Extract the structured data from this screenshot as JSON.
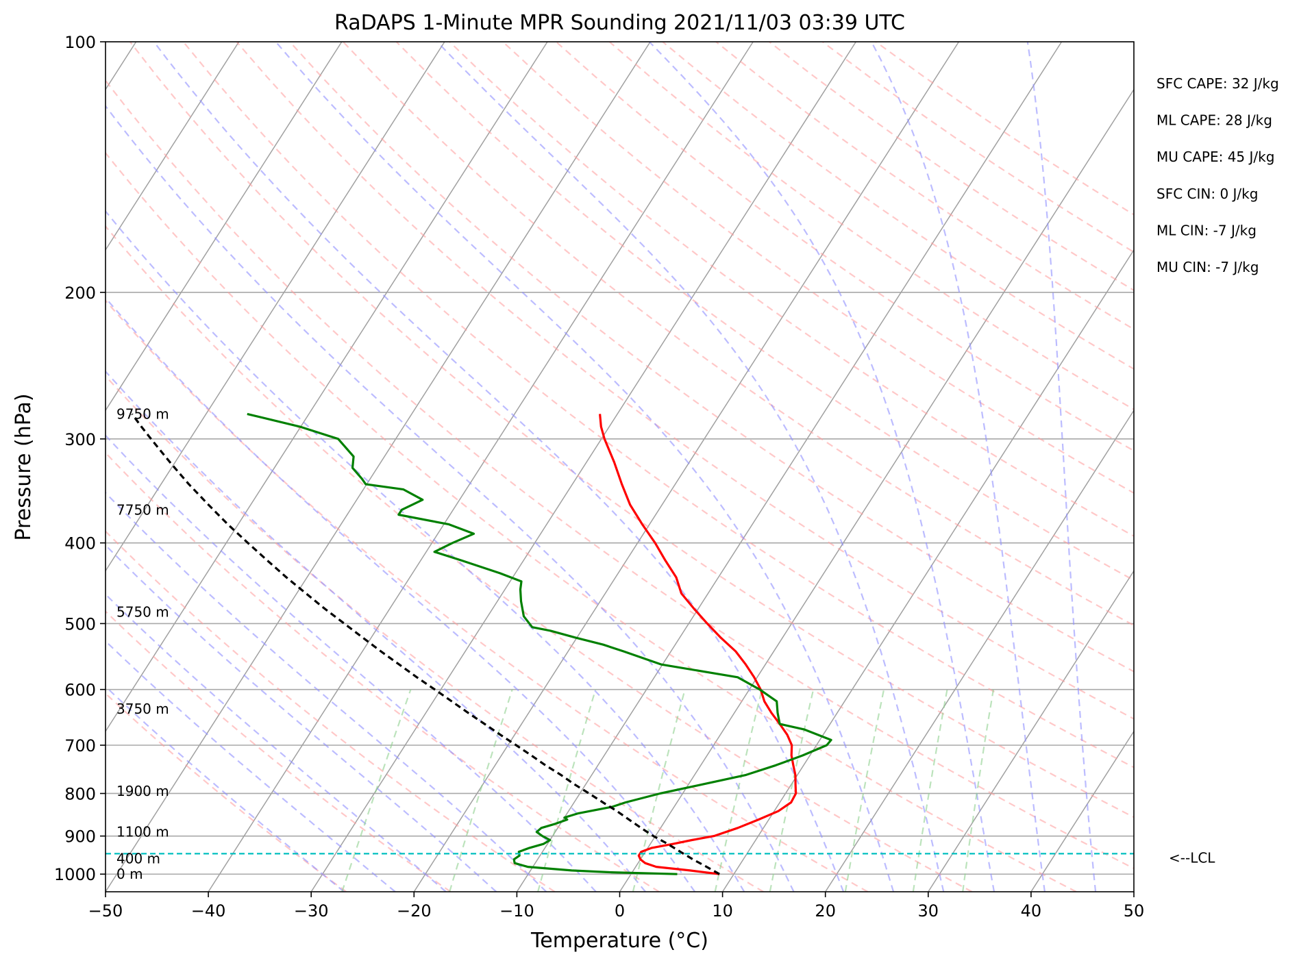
{
  "chart_data": {
    "type": "line",
    "subtype": "skew-T log-p sounding",
    "title": "RaDAPS 1-Minute MPR Sounding 2021/11/03 03:39 UTC",
    "xlabel": "Temperature (°C)",
    "ylabel": "Pressure (hPa)",
    "xlim": [
      -50,
      50
    ],
    "ylim": [
      1050,
      100
    ],
    "y_scale": "log",
    "grid": true,
    "x_ticks": [
      -50,
      -40,
      -30,
      -20,
      -10,
      0,
      10,
      20,
      30,
      40,
      50
    ],
    "x_tick_labels": [
      "−50",
      "−40",
      "−30",
      "−20",
      "−10",
      "0",
      "10",
      "20",
      "30",
      "40",
      "50"
    ],
    "y_ticks": [
      1000,
      900,
      800,
      700,
      600,
      500,
      400,
      300,
      200,
      100
    ],
    "y_tick_labels": [
      "1000",
      "900",
      "800",
      "700",
      "600",
      "500",
      "400",
      "300",
      "200",
      "100"
    ],
    "series": [
      {
        "key": "temperature",
        "color": "#ff0000",
        "points": [
          [
            1000,
            8.6
          ],
          [
            990,
            5.5
          ],
          [
            980,
            2.0
          ],
          [
            970,
            0.7
          ],
          [
            960,
            0.0
          ],
          [
            950,
            -0.4
          ],
          [
            940,
            -0.4
          ],
          [
            930,
            0.4
          ],
          [
            920,
            2.2
          ],
          [
            910,
            3.8
          ],
          [
            900,
            5.7
          ],
          [
            880,
            7.5
          ],
          [
            860,
            9.0
          ],
          [
            840,
            10.4
          ],
          [
            820,
            11.1
          ],
          [
            800,
            11.0
          ],
          [
            780,
            10.4
          ],
          [
            760,
            9.8
          ],
          [
            740,
            9.0
          ],
          [
            720,
            8.2
          ],
          [
            700,
            7.6
          ],
          [
            680,
            6.5
          ],
          [
            660,
            5.1
          ],
          [
            640,
            3.6
          ],
          [
            620,
            2.2
          ],
          [
            600,
            1.1
          ],
          [
            580,
            -0.3
          ],
          [
            560,
            -1.9
          ],
          [
            540,
            -3.7
          ],
          [
            520,
            -6.0
          ],
          [
            500,
            -8.2
          ],
          [
            480,
            -10.4
          ],
          [
            460,
            -12.6
          ],
          [
            440,
            -14.1
          ],
          [
            420,
            -16.2
          ],
          [
            400,
            -18.3
          ],
          [
            380,
            -20.7
          ],
          [
            360,
            -23.1
          ],
          [
            340,
            -25.2
          ],
          [
            320,
            -27.3
          ],
          [
            300,
            -29.7
          ],
          [
            290,
            -30.8
          ],
          [
            280,
            -31.7
          ]
        ]
      },
      {
        "key": "dewpoint",
        "color": "#008000",
        "points": [
          [
            1000,
            4.5
          ],
          [
            995,
            -2.0
          ],
          [
            990,
            -6.0
          ],
          [
            980,
            -10.5
          ],
          [
            970,
            -12.0
          ],
          [
            960,
            -12.3
          ],
          [
            950,
            -12.0
          ],
          [
            940,
            -12.3
          ],
          [
            930,
            -11.5
          ],
          [
            920,
            -10.4
          ],
          [
            910,
            -10.0
          ],
          [
            900,
            -11.0
          ],
          [
            890,
            -11.8
          ],
          [
            880,
            -11.6
          ],
          [
            870,
            -10.5
          ],
          [
            860,
            -9.6
          ],
          [
            855,
            -10.0
          ],
          [
            845,
            -8.9
          ],
          [
            830,
            -6.0
          ],
          [
            820,
            -5.0
          ],
          [
            800,
            -2.2
          ],
          [
            780,
            1.4
          ],
          [
            760,
            5.0
          ],
          [
            740,
            7.3
          ],
          [
            720,
            9.3
          ],
          [
            700,
            11.0
          ],
          [
            690,
            11.1
          ],
          [
            670,
            7.8
          ],
          [
            660,
            5.1
          ],
          [
            640,
            4.2
          ],
          [
            620,
            3.4
          ],
          [
            600,
            1.0
          ],
          [
            580,
            -1.9
          ],
          [
            560,
            -10.1
          ],
          [
            540,
            -14.6
          ],
          [
            530,
            -17.0
          ],
          [
            520,
            -20.1
          ],
          [
            510,
            -23.0
          ],
          [
            505,
            -25.0
          ],
          [
            490,
            -26.5
          ],
          [
            470,
            -27.7
          ],
          [
            455,
            -28.5
          ],
          [
            445,
            -28.9
          ],
          [
            435,
            -31.5
          ],
          [
            420,
            -36.0
          ],
          [
            410,
            -39.2
          ],
          [
            400,
            -38.0
          ],
          [
            390,
            -36.5
          ],
          [
            380,
            -39.5
          ],
          [
            370,
            -45.0
          ],
          [
            365,
            -45.0
          ],
          [
            355,
            -43.6
          ],
          [
            345,
            -46.1
          ],
          [
            340,
            -50.1
          ],
          [
            335,
            -50.8
          ],
          [
            325,
            -52.4
          ],
          [
            315,
            -53.0
          ],
          [
            300,
            -55.6
          ],
          [
            290,
            -60.1
          ],
          [
            280,
            -66.0
          ]
        ]
      },
      {
        "key": "parcel",
        "color": "#000000",
        "dashed": true,
        "points": [
          [
            1000,
            8.6
          ],
          [
            980,
            6.9
          ],
          [
            960,
            5.1
          ],
          [
            940,
            3.4
          ],
          [
            920,
            1.7
          ],
          [
            900,
            -0.2
          ],
          [
            880,
            -1.9
          ],
          [
            860,
            -3.6
          ],
          [
            840,
            -5.3
          ],
          [
            820,
            -7.2
          ],
          [
            800,
            -9.1
          ],
          [
            780,
            -11.1
          ],
          [
            760,
            -13.0
          ],
          [
            740,
            -15.1
          ],
          [
            720,
            -17.1
          ],
          [
            700,
            -19.2
          ],
          [
            680,
            -21.4
          ],
          [
            660,
            -23.6
          ],
          [
            640,
            -25.9
          ],
          [
            620,
            -28.2
          ],
          [
            600,
            -30.6
          ],
          [
            580,
            -33.1
          ],
          [
            560,
            -35.6
          ],
          [
            540,
            -38.2
          ],
          [
            520,
            -40.8
          ],
          [
            500,
            -43.5
          ],
          [
            480,
            -46.3
          ],
          [
            460,
            -49.1
          ],
          [
            440,
            -52.0
          ],
          [
            420,
            -54.9
          ],
          [
            400,
            -57.9
          ],
          [
            380,
            -61.0
          ],
          [
            360,
            -64.1
          ],
          [
            340,
            -67.3
          ],
          [
            320,
            -70.5
          ],
          [
            300,
            -73.8
          ],
          [
            290,
            -75.5
          ],
          [
            280,
            -77.2
          ]
        ]
      }
    ],
    "height_labels": [
      {
        "p": 1000,
        "text": "0 m"
      },
      {
        "p": 958,
        "text": "400 m"
      },
      {
        "p": 890,
        "text": "1100 m"
      },
      {
        "p": 795,
        "text": "1900 m"
      },
      {
        "p": 633,
        "text": "3750 m"
      },
      {
        "p": 484,
        "text": "5750 m"
      },
      {
        "p": 365,
        "text": "7750 m"
      },
      {
        "p": 280,
        "text": "9750 m"
      }
    ],
    "lcl": {
      "p": 945,
      "label": "<--LCL",
      "color": "#00bfbf"
    },
    "stats": [
      "SFC CAPE: 32 J/kg",
      "ML CAPE: 28 J/kg",
      "MU CAPE: 45 J/kg",
      "SFC CIN: 0 J/kg",
      "ML CIN: -7 J/kg",
      "MU CIN: -7 J/kg"
    ],
    "background_lines": {
      "isotherm_color": "#a0a0a0",
      "dry_adiabat_color": "#ff9a9a",
      "moist_adiabat_color": "#8f8fff",
      "mixing_ratio_color": "#8fd08f",
      "hline_color": "#a8a8a8"
    }
  }
}
